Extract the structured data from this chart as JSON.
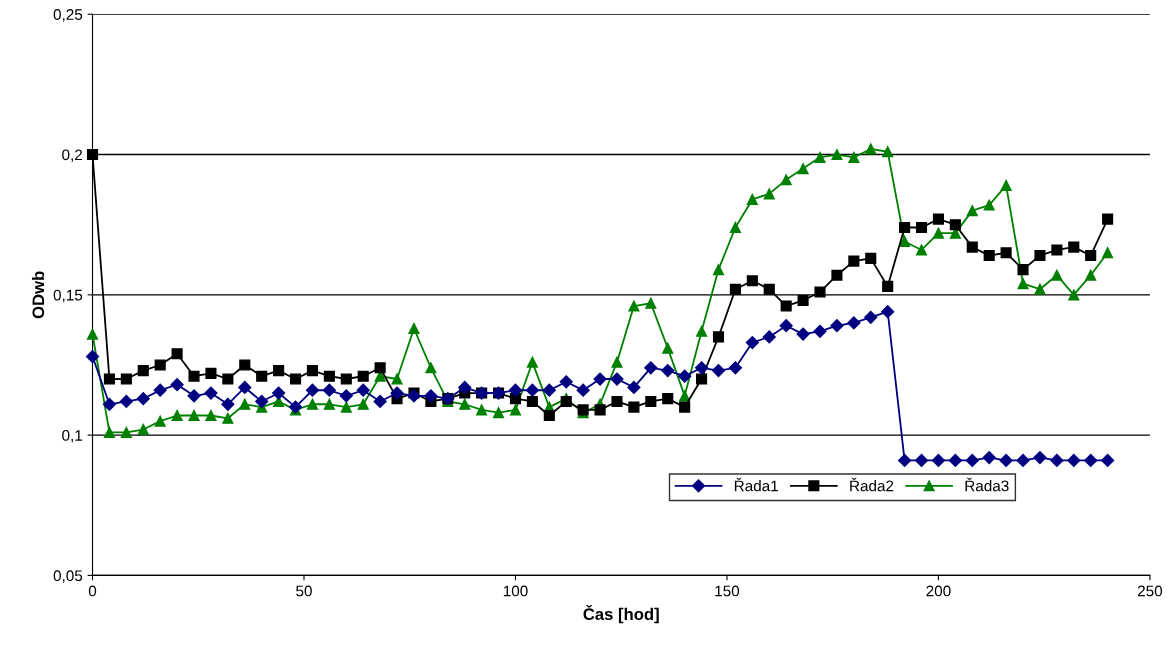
{
  "chart_data": {
    "type": "line",
    "xlabel": "Čas [hod]",
    "ylabel": "ODwb",
    "x": [
      0,
      4,
      8,
      12,
      16,
      20,
      24,
      28,
      32,
      36,
      40,
      44,
      48,
      52,
      56,
      60,
      64,
      68,
      72,
      76,
      80,
      84,
      88,
      92,
      96,
      100,
      104,
      108,
      112,
      116,
      120,
      124,
      128,
      132,
      136,
      140,
      144,
      148,
      152,
      156,
      160,
      164,
      168,
      172,
      176,
      180,
      184,
      188,
      192,
      196,
      200,
      204,
      208,
      212,
      216,
      220,
      224,
      228,
      232,
      236,
      240
    ],
    "xlim": [
      0,
      250
    ],
    "xticks": [
      0,
      50,
      100,
      150,
      200,
      250
    ],
    "ylim": [
      0.05,
      0.25
    ],
    "yticks": [
      {
        "value": 0.05,
        "label": "0,05"
      },
      {
        "value": 0.1,
        "label": "0,1"
      },
      {
        "value": 0.15,
        "label": "0,15"
      },
      {
        "value": 0.2,
        "label": "0,2"
      },
      {
        "value": 0.25,
        "label": "0,25"
      }
    ],
    "grid": "y",
    "legend": "bottom right",
    "series": [
      {
        "name": "Řada1",
        "color": "#000080",
        "marker": "diamond",
        "values": [
          0.128,
          0.111,
          0.112,
          0.113,
          0.116,
          0.118,
          0.114,
          0.115,
          0.111,
          0.117,
          0.112,
          0.115,
          0.11,
          0.116,
          0.116,
          0.114,
          0.116,
          0.112,
          0.115,
          0.114,
          0.114,
          0.113,
          0.117,
          0.115,
          0.115,
          0.116,
          0.116,
          0.116,
          0.119,
          0.116,
          0.12,
          0.12,
          0.117,
          0.124,
          0.123,
          0.121,
          0.124,
          0.123,
          0.124,
          0.133,
          0.135,
          0.139,
          0.136,
          0.137,
          0.139,
          0.14,
          0.142,
          0.144,
          0.091,
          0.091,
          0.091,
          0.091,
          0.091,
          0.092,
          0.091,
          0.091,
          0.092,
          0.091,
          0.091,
          0.091,
          0.091
        ]
      },
      {
        "name": "Řada2",
        "color": "#000000",
        "marker": "square",
        "values": [
          0.2,
          0.12,
          0.12,
          0.123,
          0.125,
          0.129,
          0.121,
          0.122,
          0.12,
          0.125,
          0.121,
          0.123,
          0.12,
          0.123,
          0.121,
          0.12,
          0.121,
          0.124,
          0.113,
          0.115,
          0.112,
          0.113,
          0.115,
          0.115,
          0.115,
          0.113,
          0.112,
          0.107,
          0.112,
          0.109,
          0.109,
          0.112,
          0.11,
          0.112,
          0.113,
          0.11,
          0.12,
          0.135,
          0.152,
          0.155,
          0.152,
          0.146,
          0.148,
          0.151,
          0.157,
          0.162,
          0.163,
          0.153,
          0.174,
          0.174,
          0.177,
          0.175,
          0.167,
          0.164,
          0.165,
          0.159,
          0.164,
          0.166,
          0.167,
          0.164,
          0.177
        ]
      },
      {
        "name": "Řada3",
        "color": "#008000",
        "marker": "triangle",
        "values": [
          0.136,
          0.101,
          0.101,
          0.102,
          0.105,
          0.107,
          0.107,
          0.107,
          0.106,
          0.111,
          0.11,
          0.112,
          0.109,
          0.111,
          0.111,
          0.11,
          0.111,
          0.121,
          0.12,
          0.138,
          0.124,
          0.112,
          0.111,
          0.109,
          0.108,
          0.109,
          0.126,
          0.11,
          0.113,
          0.108,
          0.111,
          0.126,
          0.146,
          0.147,
          0.131,
          0.114,
          0.137,
          0.159,
          0.174,
          0.184,
          0.186,
          0.191,
          0.195,
          0.199,
          0.2,
          0.199,
          0.202,
          0.201,
          0.169,
          0.166,
          0.172,
          0.172,
          0.18,
          0.182,
          0.189,
          0.154,
          0.152,
          0.157,
          0.15,
          0.157,
          0.165
        ]
      }
    ]
  }
}
